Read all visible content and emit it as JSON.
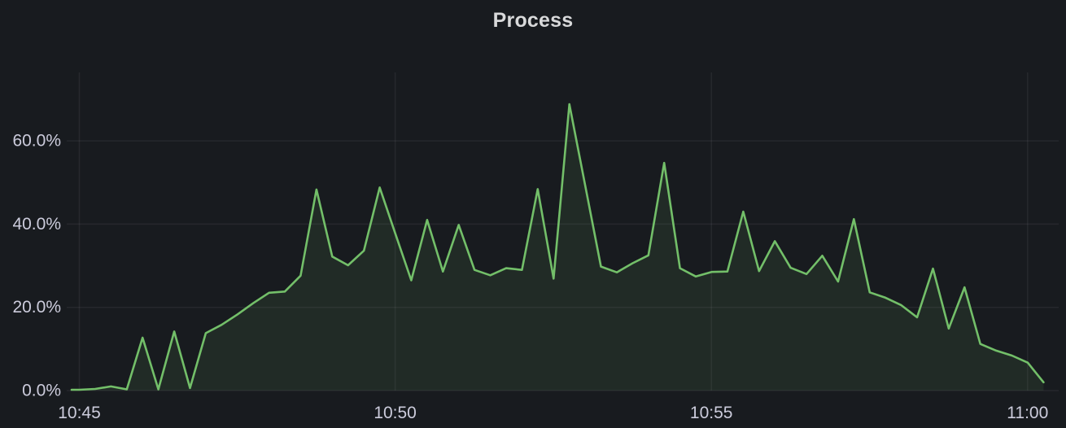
{
  "panel": {
    "title": "Process"
  },
  "colors": {
    "background": "#181b1f",
    "line": "#73bf69",
    "fill_opacity": 0.1,
    "grid": "rgba(204,204,220,0.08)",
    "tick_text": "#ccccdc",
    "title_text": "#d8d9da"
  },
  "chart_data": {
    "type": "area",
    "title": "Process",
    "unit": "percent",
    "legend_position": "none",
    "grid": true,
    "x_start": "10:45:00",
    "x_end": "11:00:15",
    "interval_seconds": 15,
    "x_ticks": [
      "10:45",
      "10:50",
      "10:55",
      "11:00"
    ],
    "y_ticks": [
      "0.0%",
      "20.0%",
      "40.0%",
      "60.0%"
    ],
    "y_tick_values": [
      0,
      20,
      40,
      60
    ],
    "ylim": [
      0,
      76.4
    ],
    "series": [
      {
        "name": "Process",
        "color": "#73bf69",
        "fill_opacity": 0.1,
        "values": [
          0.2,
          0.4,
          1.0,
          0.3,
          12.7,
          0.3,
          14.2,
          0.6,
          13.8,
          15.8,
          18.3,
          21.0,
          23.5,
          23.8,
          27.6,
          48.3,
          32.2,
          30.1,
          33.6,
          48.8,
          37.6,
          26.5,
          41.0,
          28.6,
          39.8,
          29.0,
          27.7,
          29.4,
          29.0,
          48.4,
          26.9,
          68.8,
          49.3,
          29.8,
          28.4,
          30.6,
          32.5,
          54.7,
          29.4,
          27.4,
          28.5,
          28.6,
          43.0,
          28.7,
          35.9,
          29.5,
          28.0,
          32.4,
          26.2,
          41.2,
          23.6,
          22.3,
          20.5,
          17.6,
          29.3,
          14.9,
          24.8,
          11.2,
          9.6,
          8.4,
          6.7,
          2.0
        ]
      }
    ]
  }
}
